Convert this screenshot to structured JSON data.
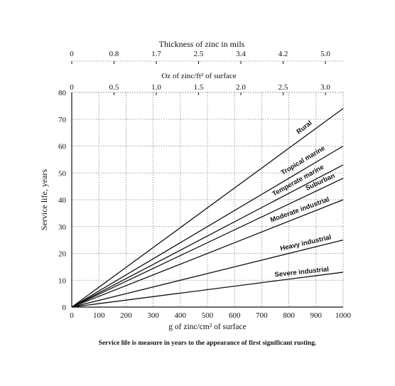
{
  "chart_data": {
    "type": "line",
    "top_axis_1": {
      "label": "Thickness of zinc in mils",
      "ticks": [
        "0",
        "0.8",
        "1.7",
        "2.5",
        "3.4",
        "4.2",
        "5.0"
      ]
    },
    "top_axis_2": {
      "label": "Oz of zinc/ft² of surface",
      "ticks": [
        "0",
        "0.5",
        "1.0",
        "1.5",
        "2.0",
        "2.5",
        "3.0"
      ]
    },
    "xlabel": "g of zinc/cm² of surface",
    "ylabel": "Service life, years",
    "xlim": [
      0,
      1000
    ],
    "ylim": [
      0,
      80
    ],
    "x_ticks": [
      "0",
      "100",
      "200",
      "300",
      "400",
      "500",
      "600",
      "700",
      "800",
      "900",
      "1000"
    ],
    "y_ticks": [
      "0",
      "10",
      "20",
      "30",
      "40",
      "50",
      "60",
      "70",
      "80"
    ],
    "grid": true,
    "series": [
      {
        "name": "Rural",
        "x": [
          0,
          1000
        ],
        "y": [
          0,
          74
        ]
      },
      {
        "name": "Tropical marine",
        "x": [
          0,
          1000
        ],
        "y": [
          0,
          60
        ]
      },
      {
        "name": "Temperate marine",
        "x": [
          0,
          1000
        ],
        "y": [
          0,
          53
        ]
      },
      {
        "name": "Suburban",
        "x": [
          0,
          1000
        ],
        "y": [
          0,
          48
        ]
      },
      {
        "name": "Moderate industrial",
        "x": [
          0,
          1000
        ],
        "y": [
          0,
          40
        ]
      },
      {
        "name": "Heavy industrial",
        "x": [
          0,
          1000
        ],
        "y": [
          0,
          25
        ]
      },
      {
        "name": "Severe industrial",
        "x": [
          0,
          1000
        ],
        "y": [
          0,
          13
        ]
      }
    ],
    "caption": "Service life is measure in years to the appearance of first significant rusting."
  }
}
